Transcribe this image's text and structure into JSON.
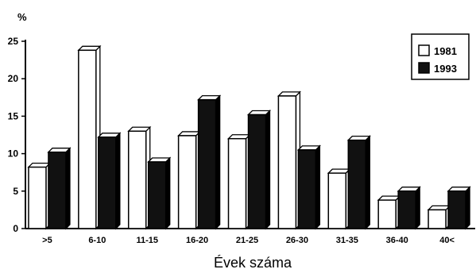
{
  "chart_data": {
    "type": "bar",
    "title": "",
    "ylabel": "%",
    "xlabel": "Évek száma",
    "ylim": [
      0,
      25
    ],
    "yticks": [
      0,
      5,
      10,
      15,
      20,
      25
    ],
    "categories": [
      ">5",
      "6-10",
      "11-15",
      "16-20",
      "21-25",
      "26-30",
      "31-35",
      "36-40",
      "40<"
    ],
    "series": [
      {
        "name": "1981",
        "values": [
          8.2,
          23.8,
          13.0,
          12.4,
          12.0,
          17.7,
          7.4,
          3.8,
          2.5
        ],
        "color": "#ffffff"
      },
      {
        "name": "1993",
        "values": [
          10.2,
          12.2,
          8.9,
          17.2,
          15.2,
          10.5,
          11.8,
          5.0,
          5.0
        ],
        "color": "#111111"
      }
    ],
    "legend": "top-right",
    "grid": false,
    "style": "3d"
  }
}
